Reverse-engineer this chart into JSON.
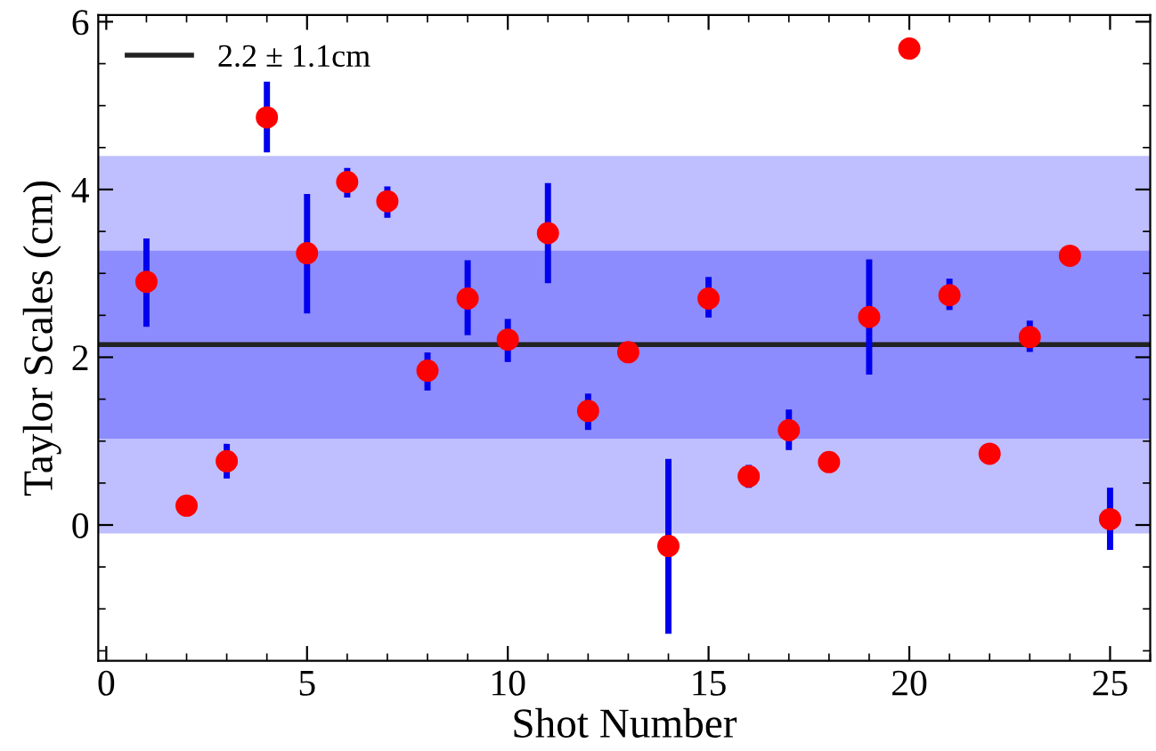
{
  "chart_data": {
    "type": "scatter",
    "xlabel": "Shot Number",
    "ylabel": "Taylor Scales (cm)",
    "x": [
      1,
      2,
      3,
      4,
      5,
      6,
      7,
      8,
      9,
      10,
      11,
      12,
      13,
      14,
      15,
      16,
      17,
      18,
      19,
      20,
      21,
      22,
      23,
      24,
      25
    ],
    "series": [
      {
        "color": "#ff0000",
        "values": [
          2.9,
          0.23,
          0.76,
          4.86,
          3.24,
          4.09,
          3.86,
          1.84,
          2.7,
          2.21,
          3.48,
          1.36,
          2.06,
          -0.25,
          2.7,
          0.58,
          1.13,
          0.75,
          2.48,
          5.68,
          2.74,
          0.85,
          2.24,
          3.21,
          0.07
        ],
        "errors": [
          [
            2.4,
            3.38
          ],
          null,
          [
            0.59,
            0.93
          ],
          [
            4.48,
            5.25
          ],
          [
            2.56,
            3.91
          ],
          [
            3.94,
            4.22
          ],
          [
            3.7,
            4.0
          ],
          [
            1.64,
            2.02
          ],
          [
            2.3,
            3.12
          ],
          [
            1.98,
            2.42
          ],
          [
            2.92,
            4.04
          ],
          [
            1.17,
            1.53
          ],
          null,
          [
            -1.26,
            0.75
          ],
          [
            2.51,
            2.92
          ],
          [
            0.48,
            0.68
          ],
          [
            0.93,
            1.34
          ],
          null,
          [
            1.83,
            3.13
          ],
          null,
          [
            2.6,
            2.9
          ],
          null,
          [
            2.1,
            2.4
          ],
          null,
          [
            -0.26,
            0.41
          ]
        ]
      }
    ],
    "ref_lines": [
      {
        "axis": "y",
        "value": 2.15,
        "label": "2.2 ± 1.1cm",
        "color": "#222222"
      }
    ],
    "bands": [
      {
        "axis": "y",
        "from": -0.1,
        "to": 4.4,
        "color": "#bfbfff"
      },
      {
        "axis": "y",
        "from": 1.03,
        "to": 3.27,
        "color": "#8c8cff"
      }
    ],
    "xlim": [
      -0.2,
      26
    ],
    "ylim": [
      -1.62,
      6.08
    ],
    "xticks": [
      0,
      5,
      10,
      15,
      20,
      25
    ],
    "yticks": [
      0,
      2,
      4,
      6
    ],
    "marker": "circle",
    "grid": false,
    "legend": "top left"
  }
}
